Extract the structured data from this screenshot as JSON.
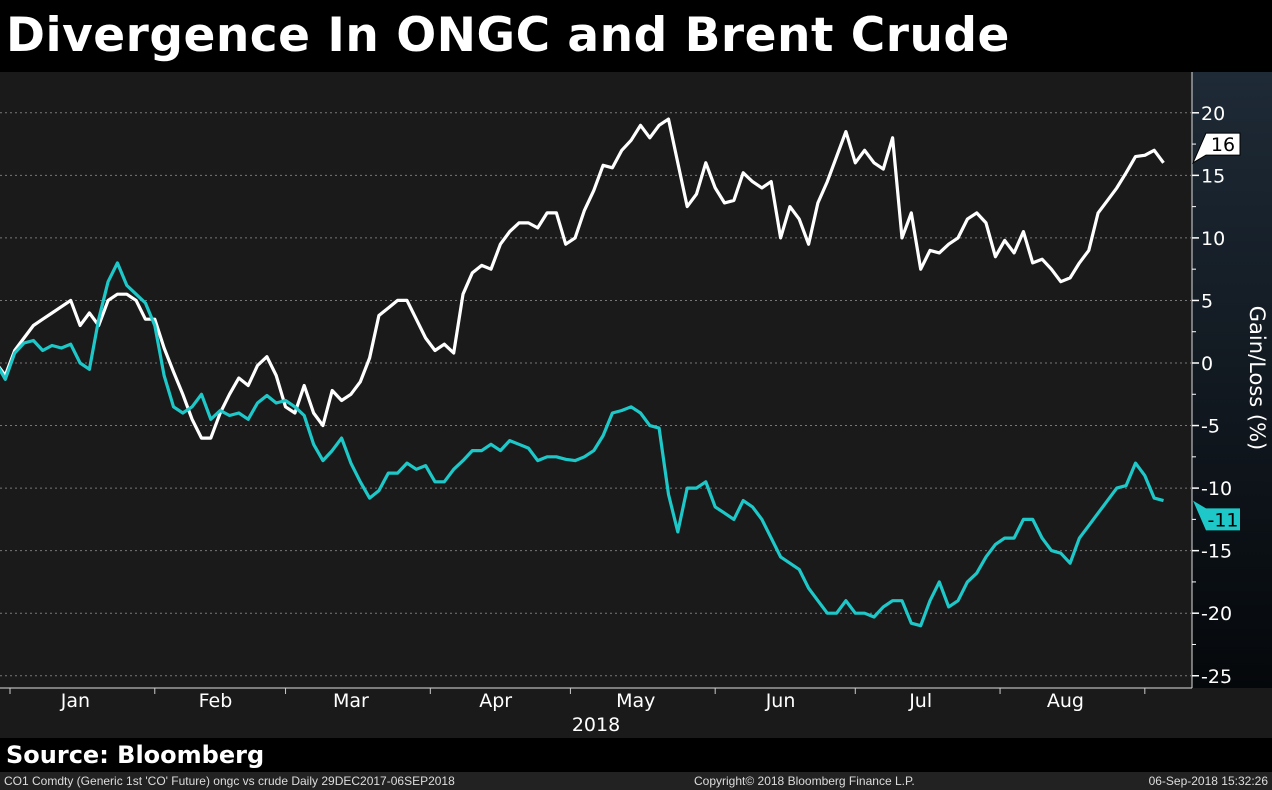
{
  "title": "Divergence In ONGC and Brent Crude",
  "source": "Source: Bloomberg",
  "footer": {
    "left": "CO1 Comdty (Generic 1st 'CO' Future) ongc vs crude  Daily 29DEC2017-06SEP2018",
    "center": "Copyright© 2018 Bloomberg Finance L.P.",
    "right": "06-Sep-2018 15:32:26"
  },
  "chart_data": {
    "type": "line",
    "title": "Divergence In ONGC and Brent Crude",
    "xlabel": "2018",
    "ylabel": "Gain/Loss (%)",
    "x_unit": "days since 29-Dec-2017",
    "x_start": 0,
    "x_step": 2,
    "xlim": [
      0,
      252
    ],
    "ylim": [
      -26,
      24
    ],
    "yticks": [
      -25,
      -20,
      -15,
      -10,
      -5,
      0,
      5,
      10,
      15,
      20
    ],
    "grid": true,
    "month_ticks": [
      {
        "label": "Jan",
        "day": 17
      },
      {
        "label": "Feb",
        "day": 47
      },
      {
        "label": "Mar",
        "day": 76
      },
      {
        "label": "Apr",
        "day": 107
      },
      {
        "label": "May",
        "day": 137
      },
      {
        "label": "Jun",
        "day": 168
      },
      {
        "label": "Jul",
        "day": 198
      },
      {
        "label": "Aug",
        "day": 229
      }
    ],
    "series": [
      {
        "name": "Brent Crude (CO1 Comdty)",
        "color": "#ffffff",
        "last_label": "16",
        "values": [
          0,
          -1,
          1,
          2,
          3,
          3.5,
          4,
          4.5,
          5,
          3,
          4,
          3,
          5,
          5.5,
          5.5,
          5,
          3.5,
          3.5,
          1.2,
          -0.7,
          -2.5,
          -4.5,
          -6,
          -6,
          -4,
          -2.5,
          -1.2,
          -1.8,
          -0.2,
          0.5,
          -1,
          -3.5,
          -4,
          -1.8,
          -4,
          -5,
          -2.2,
          -3,
          -2.5,
          -1.5,
          0.4,
          3.8,
          4.4,
          5,
          5,
          3.5,
          2,
          1,
          1.5,
          0.8,
          5.5,
          7.2,
          7.8,
          7.5,
          9.5,
          10.5,
          11.2,
          11.2,
          10.8,
          12,
          12,
          9.5,
          10,
          12.2,
          13.8,
          15.8,
          15.6,
          17,
          17.8,
          19,
          18,
          19,
          19.5,
          16,
          12.5,
          13.5,
          16,
          14,
          12.8,
          13,
          15.2,
          14.5,
          14,
          14.5,
          10,
          12.5,
          11.5,
          9.5,
          12.8,
          14.5,
          16.5,
          18.5,
          16,
          17,
          16,
          15.5,
          18,
          10,
          12,
          7.5,
          9,
          8.8,
          9.5,
          10,
          11.5,
          12,
          11.2,
          8.5,
          9.8,
          8.8,
          10.5,
          8,
          8.3,
          7.5,
          6.5,
          6.8,
          8,
          9,
          12,
          13,
          14,
          15.2,
          16.5,
          16.6,
          17,
          16
        ]
      },
      {
        "name": "ONGC",
        "color": "#1ec8c8",
        "last_label": "-11",
        "values": [
          0,
          -1.3,
          0.8,
          1.6,
          1.8,
          1,
          1.4,
          1.2,
          1.5,
          0,
          -0.5,
          3.5,
          6.5,
          8,
          6.2,
          5.5,
          4.8,
          3,
          -1,
          -3.5,
          -4,
          -3.5,
          -2.5,
          -4.5,
          -3.8,
          -4.2,
          -4,
          -4.5,
          -3.2,
          -2.6,
          -3.2,
          -3,
          -3.5,
          -4.2,
          -6.5,
          -7.8,
          -7,
          -6,
          -8,
          -9.5,
          -10.8,
          -10.2,
          -8.8,
          -8.8,
          -8,
          -8.5,
          -8.2,
          -9.5,
          -9.5,
          -8.5,
          -7.8,
          -7,
          -7,
          -6.5,
          -7,
          -6.2,
          -6.5,
          -6.8,
          -7.8,
          -7.5,
          -7.5,
          -7.7,
          -7.8,
          -7.5,
          -7,
          -5.8,
          -4,
          -3.8,
          -3.5,
          -4,
          -5,
          -5.2,
          -10.5,
          -13.5,
          -10,
          -10,
          -9.5,
          -11.5,
          -12,
          -12.5,
          -11,
          -11.5,
          -12.5,
          -14,
          -15.5,
          -16,
          -16.5,
          -18,
          -19,
          -20,
          -20,
          -19,
          -20,
          -20,
          -20.3,
          -19.5,
          -19,
          -19,
          -20.8,
          -21,
          -19,
          -17.5,
          -19.5,
          -19,
          -17.5,
          -16.8,
          -15.5,
          -14.5,
          -14,
          -14,
          -12.5,
          -12.5,
          -14,
          -15,
          -15.2,
          -16,
          -14,
          -13,
          -12,
          -11,
          -10,
          -9.8,
          -8,
          -9,
          -10.8,
          -11
        ]
      }
    ]
  }
}
